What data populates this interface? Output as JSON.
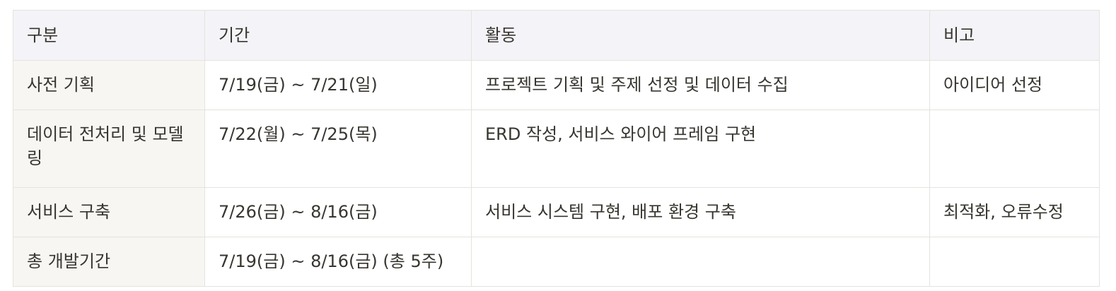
{
  "table": {
    "headers": [
      "구분",
      "기간",
      "활동",
      "비고"
    ],
    "rows": [
      [
        "사전 기획",
        "7/19(금) ~ 7/21(일)",
        "프로젝트 기획 및 주제 선정 및 데이터 수집",
        "아이디어 선정"
      ],
      [
        "데이터 전처리 및 모델링",
        "7/22(월) ~ 7/25(목)",
        "ERD 작성, 서비스 와이어 프레임 구현",
        ""
      ],
      [
        "서비스 구축",
        "7/26(금) ~ 8/16(금)",
        "서비스 시스템 구현, 배포 환경 구축",
        "최적화, 오류수정"
      ],
      [
        "총 개발기간",
        "7/19(금) ~ 8/16(금) (총 5주)",
        "",
        ""
      ]
    ]
  }
}
